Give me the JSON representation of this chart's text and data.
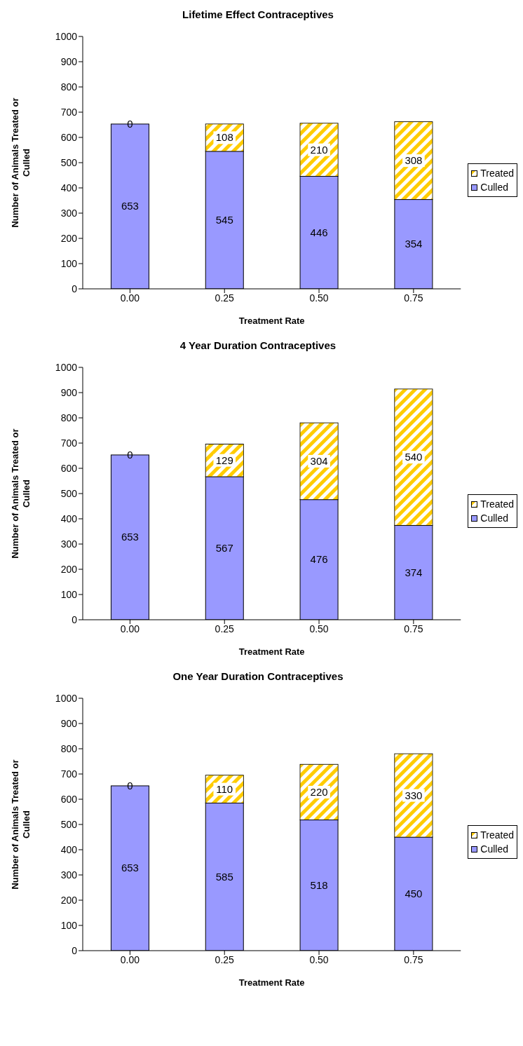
{
  "chart_data": [
    {
      "type": "bar",
      "title": "Lifetime Effect Contraceptives",
      "xlabel": "Treatment Rate",
      "ylabel": "Number of Animals Treated or Culled",
      "categories": [
        "0.00",
        "0.25",
        "0.50",
        "0.75"
      ],
      "stacked": true,
      "ylim": [
        0,
        1000
      ],
      "yticks": [
        0,
        100,
        200,
        300,
        400,
        500,
        600,
        700,
        800,
        900,
        1000
      ],
      "grid": false,
      "legend": "right",
      "data_labels": true,
      "series": [
        {
          "name": "Culled",
          "color": "#9999ff",
          "values": [
            653,
            545,
            446,
            354
          ]
        },
        {
          "name": "Treated",
          "color": "#ffcc00",
          "values": [
            0,
            108,
            210,
            308
          ]
        }
      ]
    },
    {
      "type": "bar",
      "title": "4 Year Duration Contraceptives",
      "xlabel": "Treatment Rate",
      "ylabel": "Number of Animals Treated or Culled",
      "categories": [
        "0.00",
        "0.25",
        "0.50",
        "0.75"
      ],
      "stacked": true,
      "ylim": [
        0,
        1000
      ],
      "yticks": [
        0,
        100,
        200,
        300,
        400,
        500,
        600,
        700,
        800,
        900,
        1000
      ],
      "grid": false,
      "legend": "right",
      "data_labels": true,
      "series": [
        {
          "name": "Culled",
          "color": "#9999ff",
          "values": [
            653,
            567,
            476,
            374
          ]
        },
        {
          "name": "Treated",
          "color": "#ffcc00",
          "values": [
            0,
            129,
            304,
            540
          ]
        }
      ]
    },
    {
      "type": "bar",
      "title": "One Year Duration Contraceptives",
      "xlabel": "Treatment Rate",
      "ylabel": "Number of Animals Treated or Culled",
      "categories": [
        "0.00",
        "0.25",
        "0.50",
        "0.75"
      ],
      "stacked": true,
      "ylim": [
        0,
        1000
      ],
      "yticks": [
        0,
        100,
        200,
        300,
        400,
        500,
        600,
        700,
        800,
        900,
        1000
      ],
      "grid": false,
      "legend": "right",
      "data_labels": true,
      "series": [
        {
          "name": "Culled",
          "color": "#9999ff",
          "values": [
            653,
            585,
            518,
            450
          ]
        },
        {
          "name": "Treated",
          "color": "#ffcc00",
          "values": [
            0,
            110,
            220,
            330
          ]
        }
      ]
    }
  ]
}
